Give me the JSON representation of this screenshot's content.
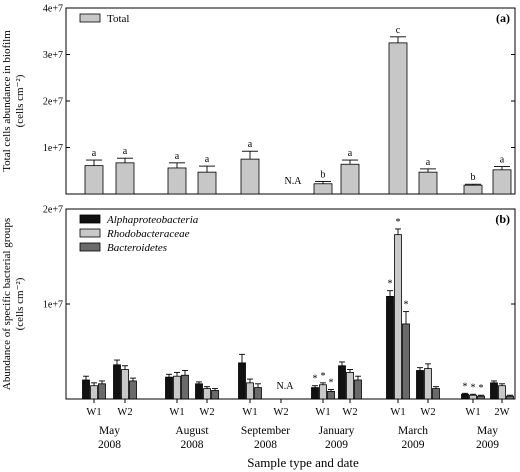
{
  "colors": {
    "total": "#c7c7c7",
    "alphaproteobacteria": "#111111",
    "rhodobacteraceae": "#c9c9c9",
    "bacteroidetes": "#6a6a6a"
  },
  "chart_data": [
    {
      "id": "a",
      "type": "bar",
      "panel_label": "(a)",
      "ylabel": [
        "Total cells abundance in biofilm",
        "(cells cm⁻²)"
      ],
      "ylim": [
        0,
        40000000
      ],
      "yticks": [
        {
          "v": 0,
          "label": ""
        },
        {
          "v": 10000000,
          "label": "1e+7"
        },
        {
          "v": 20000000,
          "label": "2e+7"
        },
        {
          "v": 30000000,
          "label": "3e+7"
        },
        {
          "v": 40000000,
          "label": "4e+7"
        }
      ],
      "legend": [
        "Total"
      ],
      "groups": [
        "May 2008 W1",
        "May 2008 W2",
        "August 2008 W1",
        "August 2008 W2",
        "September 2008 W1",
        "September 2008 W2",
        "January 2009 W1",
        "January 2009 W2",
        "March 2009 W1",
        "March 2009 W2",
        "May 2009 W1",
        "May 2009 2W"
      ],
      "series": [
        {
          "name": "Total",
          "values": [
            6100000,
            6700000,
            5600000,
            4700000,
            7500000,
            null,
            2200000,
            6400000,
            32500000,
            4700000,
            1900000,
            5200000
          ],
          "errors": [
            1200000,
            1000000,
            1100000,
            1300000,
            1700000,
            null,
            500000,
            900000,
            1300000,
            700000,
            200000,
            700000
          ],
          "labels": [
            "a",
            "a",
            "a",
            "a",
            "a",
            "N.A",
            "b",
            "a",
            "c",
            "a",
            "b",
            "a"
          ]
        }
      ]
    },
    {
      "id": "b",
      "type": "bar",
      "panel_label": "(b)",
      "ylabel": [
        "Abundance of specific bacterial groups",
        "(cells cm⁻²)"
      ],
      "ylim": [
        0,
        20000000
      ],
      "yticks": [
        {
          "v": 0,
          "label": ""
        },
        {
          "v": 10000000,
          "label": "1e+7"
        },
        {
          "v": 20000000,
          "label": "2e+7"
        }
      ],
      "groups": [
        "May 2008 W1",
        "May 2008 W2",
        "August 2008 W1",
        "August 2008 W2",
        "September 2008 W1",
        "September 2008 W2",
        "January 2009 W1",
        "January 2009 W2",
        "March 2009 W1",
        "March 2009 W2",
        "May 2009 W1",
        "May 2009 2W"
      ],
      "series": [
        {
          "name": "Alphaproteobacteria",
          "values": [
            2000000,
            3600000,
            2300000,
            1600000,
            3800000,
            null,
            1200000,
            3500000,
            10800000,
            3000000,
            500000,
            1700000
          ],
          "errors": [
            400000,
            500000,
            300000,
            200000,
            900000,
            null,
            200000,
            400000,
            600000,
            300000,
            100000,
            200000
          ],
          "labels": [
            "",
            "",
            "",
            "",
            "",
            "N.A",
            "*",
            "",
            "*",
            "",
            "*",
            ""
          ]
        },
        {
          "name": "Rhodobacteraceae",
          "values": [
            1400000,
            3100000,
            2400000,
            1100000,
            1700000,
            null,
            1500000,
            2800000,
            17300000,
            3200000,
            400000,
            1400000
          ],
          "errors": [
            300000,
            400000,
            400000,
            200000,
            400000,
            null,
            200000,
            300000,
            600000,
            500000,
            100000,
            200000
          ],
          "labels": [
            "",
            "",
            "",
            "",
            "",
            "",
            "*",
            "",
            "*",
            "",
            "*",
            ""
          ]
        },
        {
          "name": "Bacteroidetes",
          "values": [
            1600000,
            1900000,
            2500000,
            900000,
            1200000,
            null,
            800000,
            2000000,
            7900000,
            1100000,
            300000,
            300000
          ],
          "errors": [
            300000,
            300000,
            500000,
            200000,
            400000,
            null,
            200000,
            400000,
            1300000,
            200000,
            100000,
            100000
          ],
          "labels": [
            "",
            "",
            "",
            "",
            "",
            "",
            "*",
            "",
            "*",
            "",
            "*",
            ""
          ]
        }
      ],
      "legend": [
        "Alphaproteobacteria",
        "Rhodobacteraceae",
        "Bacteroidetes"
      ]
    }
  ],
  "x_axis": {
    "sessions": [
      "W1",
      "W2",
      "W1",
      "W2",
      "W1",
      "W2",
      "W1",
      "W2",
      "W1",
      "W2",
      "W1",
      "2W"
    ],
    "months": [
      {
        "month": "May",
        "year": "2008"
      },
      {
        "month": "August",
        "year": "2008"
      },
      {
        "month": "September",
        "year": "2008"
      },
      {
        "month": "January",
        "year": "2009"
      },
      {
        "month": "March",
        "year": "2009"
      },
      {
        "month": "May",
        "year": "2009"
      }
    ],
    "xlabel": "Sample type and date"
  }
}
